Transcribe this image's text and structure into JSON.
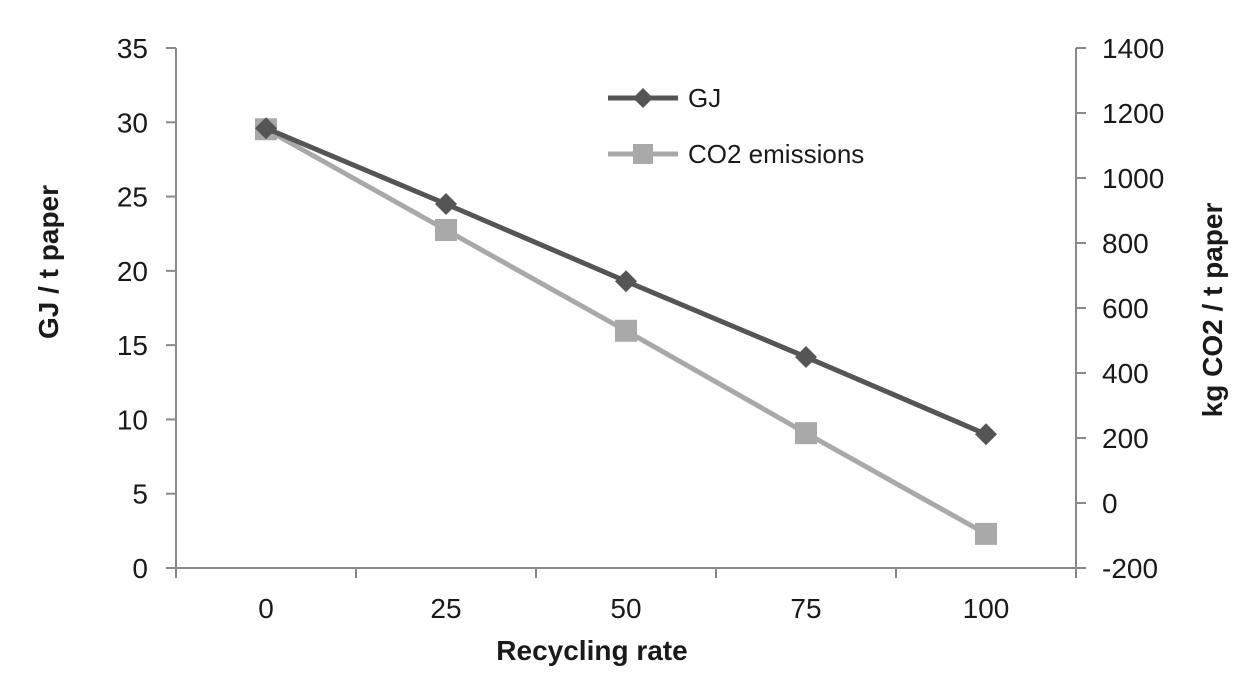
{
  "chart_data": {
    "type": "line",
    "title": "",
    "x": [
      0,
      25,
      50,
      75,
      100
    ],
    "x_tick_labels": [
      "0",
      "25",
      "50",
      "75",
      "100"
    ],
    "xlabel": "Recycling rate",
    "ylabel_left": "GJ / t paper",
    "ylabel_right": "kg CO2 / t paper",
    "ylim_left": [
      0,
      35
    ],
    "ylim_right": [
      -200,
      1400
    ],
    "y_ticks_left": [
      "0",
      "5",
      "10",
      "15",
      "20",
      "25",
      "30",
      "35"
    ],
    "y_ticks_right": [
      "-200",
      "0",
      "200",
      "400",
      "600",
      "800",
      "1000",
      "1200",
      "1400"
    ],
    "grid": false,
    "legend_position": "top-center",
    "series": [
      {
        "name": "GJ",
        "axis": "left",
        "marker": "diamond",
        "color": "#555555",
        "values": [
          29.6,
          24.5,
          19.3,
          14.2,
          9.0
        ]
      },
      {
        "name": "CO2 emissions",
        "axis": "right",
        "marker": "square",
        "color": "#a9a9a9",
        "values": [
          1150,
          840,
          530,
          215,
          -95
        ]
      }
    ]
  }
}
